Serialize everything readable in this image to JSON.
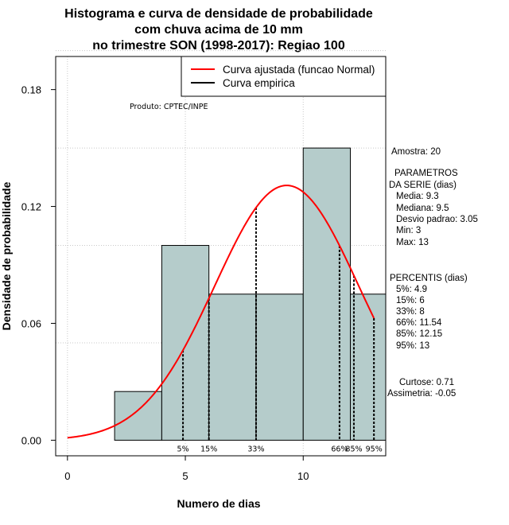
{
  "chart_data": {
    "type": "bar",
    "title_lines": [
      "Histograma e curva de densidade de probabilidade",
      "com chuva acima de 10 mm",
      "no trimestre SON (1998-2017): Regiao 100"
    ],
    "xlabel": "Numero de dias",
    "ylabel": "Densidade de probabilidade",
    "xlim": [
      -0.5,
      13.5
    ],
    "ylim": [
      -0.008,
      0.197
    ],
    "x_ticks": [
      0,
      5,
      10
    ],
    "y_ticks": [
      0.0,
      0.06,
      0.12,
      0.18
    ],
    "y_tick_labels": [
      "0.00",
      "0.06",
      "0.12",
      "0.18"
    ],
    "grid": true,
    "grid_x": [
      0,
      5,
      10
    ],
    "grid_y": [
      0.05,
      0.1,
      0.15,
      0.2
    ],
    "bar_color": "#b5cccb",
    "histogram": [
      {
        "x0": 2,
        "x1": 4,
        "density": 0.025
      },
      {
        "x0": 4,
        "x1": 6,
        "density": 0.1
      },
      {
        "x0": 6,
        "x1": 8,
        "density": 0.075
      },
      {
        "x0": 8,
        "x1": 10,
        "density": 0.075
      },
      {
        "x0": 10,
        "x1": 12,
        "density": 0.15
      },
      {
        "x0": 12,
        "x1": 14,
        "density": 0.075
      }
    ],
    "normal_curve": {
      "name": "Curva ajustada (funcao Normal)",
      "color": "#ff0000",
      "mean": 9.3,
      "sd": 3.05,
      "x_range": [
        0,
        13
      ]
    },
    "empirical_curve": {
      "name": "Curva empirica",
      "color": "#000000"
    },
    "percentiles": [
      {
        "label": "5%",
        "x": 4.9
      },
      {
        "label": "15%",
        "x": 6
      },
      {
        "label": "33%",
        "x": 8
      },
      {
        "label": "66%",
        "x": 11.54
      },
      {
        "label": "85%",
        "x": 12.15
      },
      {
        "label": "95%",
        "x": 13
      }
    ],
    "legend": {
      "position": "top-right",
      "entries": [
        "Curva ajustada (funcao Normal)",
        "Curva empirica"
      ]
    }
  },
  "product_note": "Produto: CPTEC/INPE",
  "stats_panel": {
    "sample": "Amostra: 20",
    "params_header": "PARAMETROS",
    "params_sub": "DA SERIE (dias)",
    "mean": "Media: 9.3",
    "median": "Mediana: 9.5",
    "sd": "Desvio padrao: 3.05",
    "min": "Min: 3",
    "max": "Max: 13",
    "percentis_header": "PERCENTIS (dias)",
    "p5": "5%: 4.9",
    "p15": "15%: 6",
    "p33": "33%: 8",
    "p66": "66%: 11.54",
    "p85": "85%: 12.15",
    "p95": "95%: 13",
    "kurtosis": "Curtose: 0.71",
    "skewness": "Assimetria: -0.05"
  }
}
